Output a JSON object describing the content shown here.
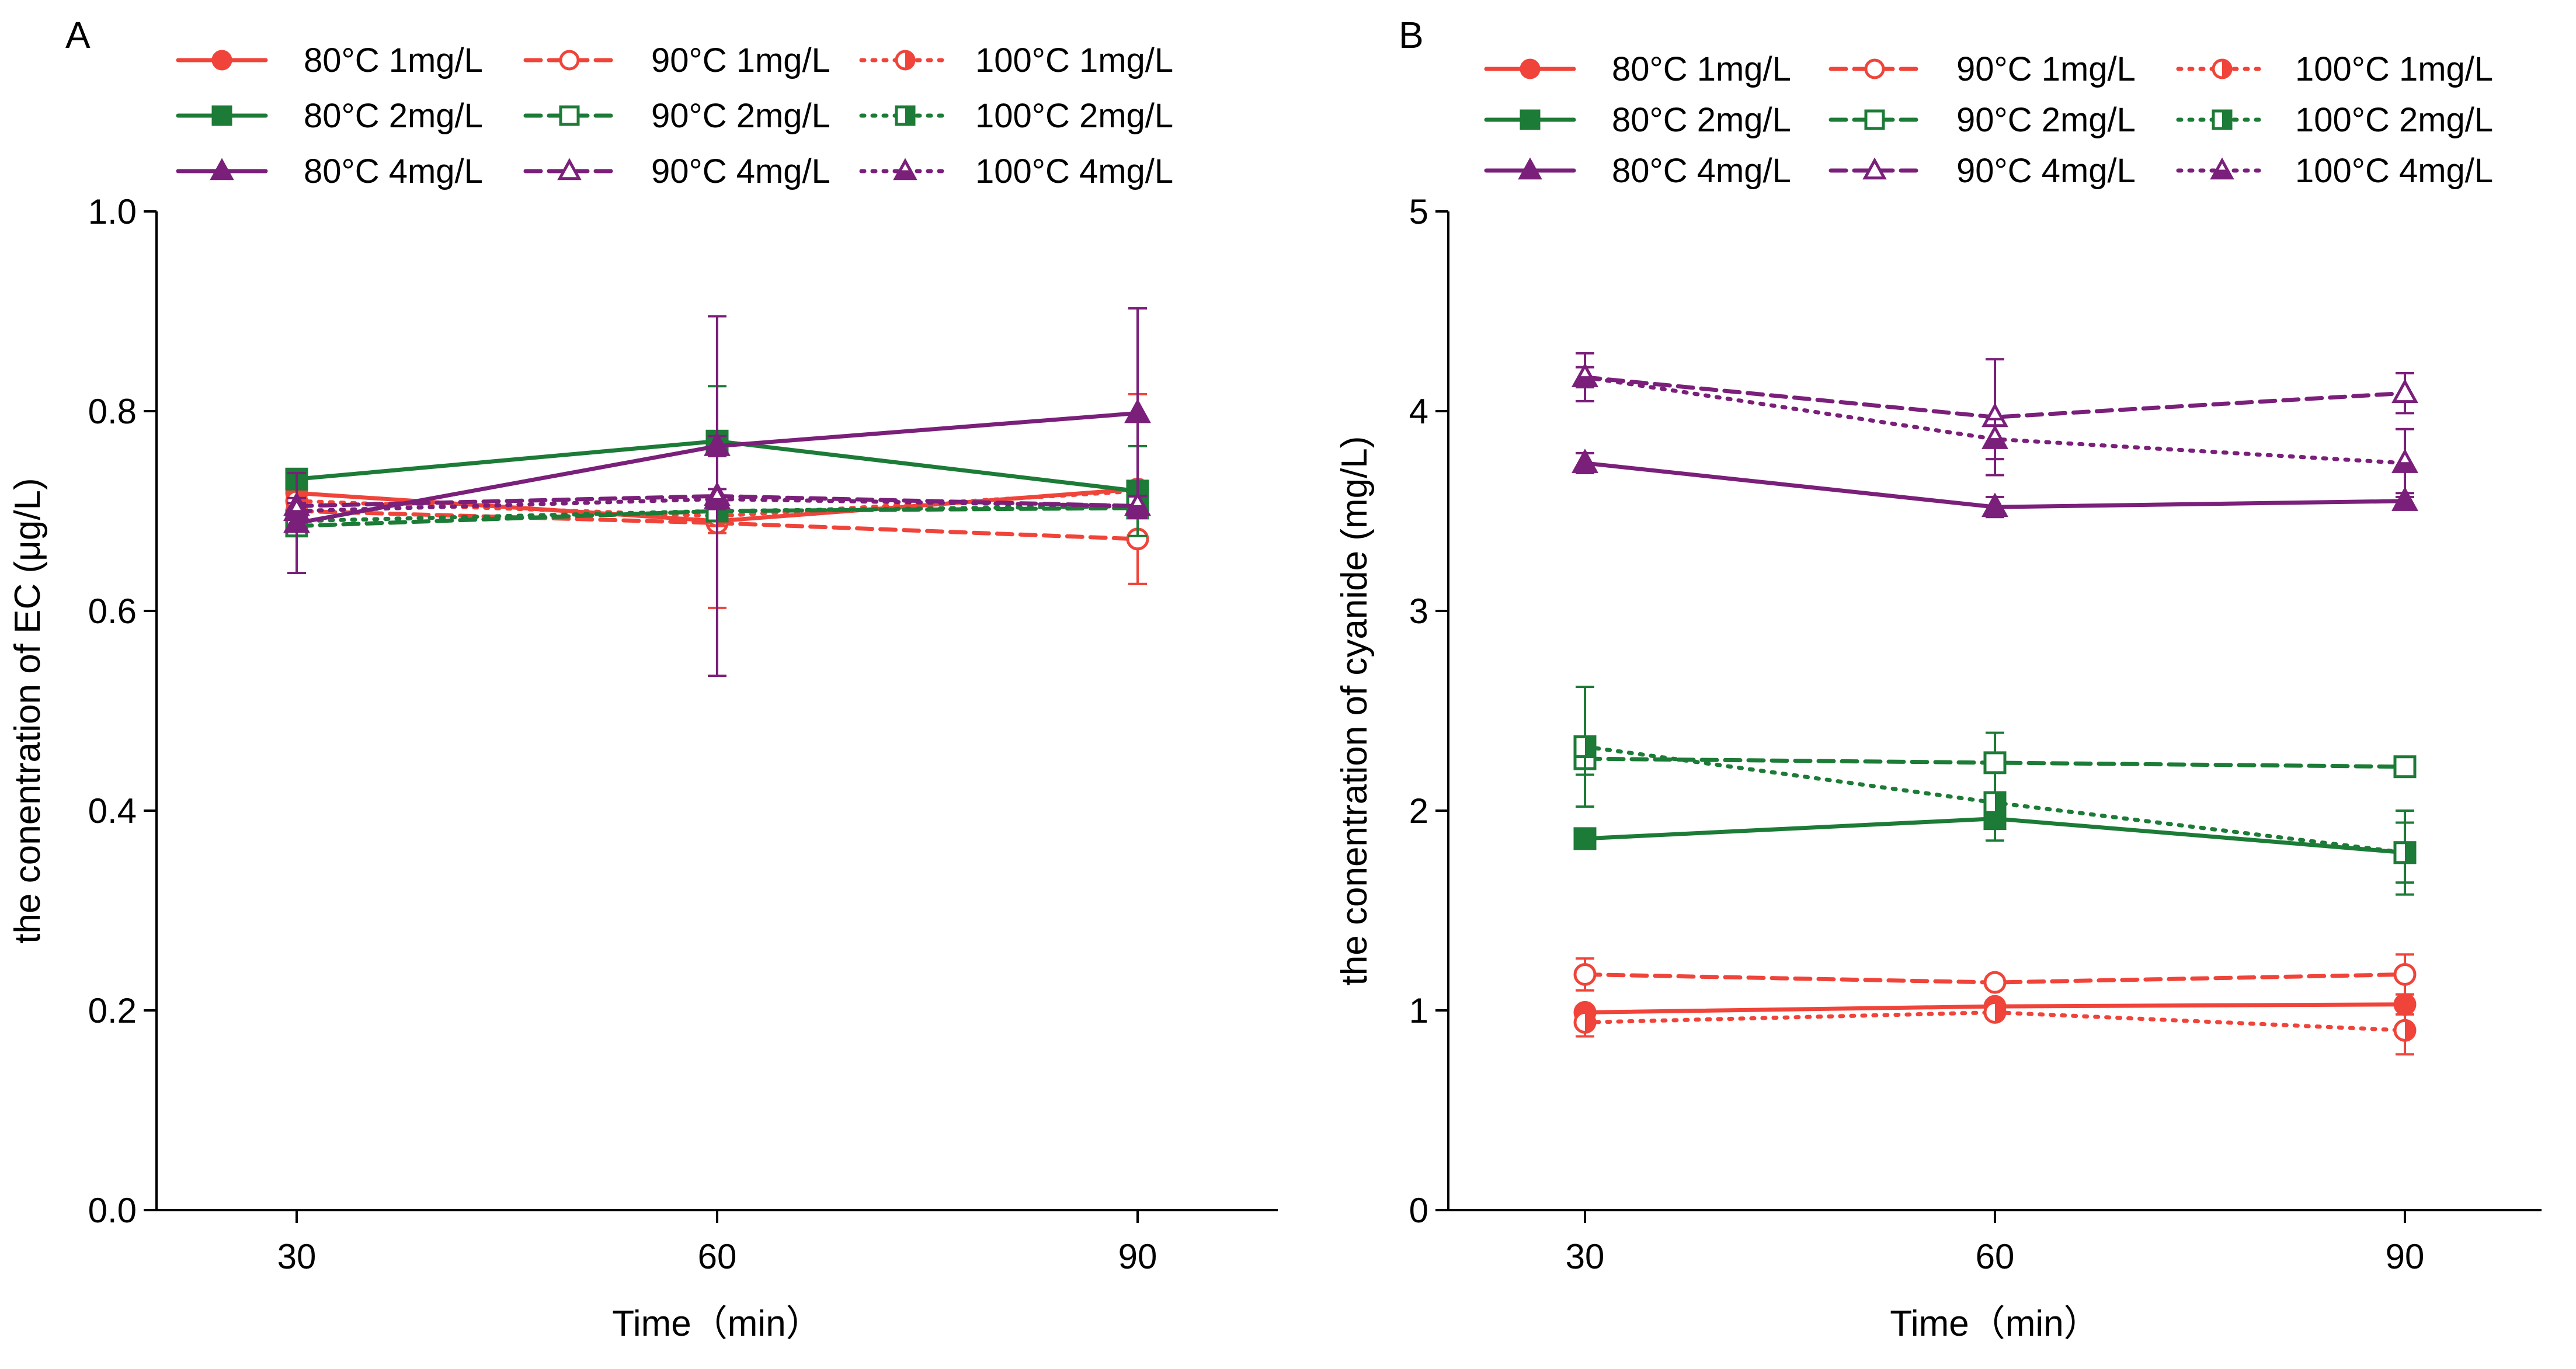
{
  "figure": {
    "panels": [
      "A",
      "B"
    ]
  },
  "chart_data": [
    {
      "panel": "A",
      "type": "line",
      "title": "",
      "xlabel": "Time（min）",
      "ylabel": "the conentration of EC (μg/L)",
      "x": [
        30,
        60,
        90
      ],
      "x_ticks": [
        "30",
        "60",
        "90"
      ],
      "y_ticks": [
        "0.0",
        "0.2",
        "0.4",
        "0.6",
        "0.8",
        "1.0"
      ],
      "xlim": [
        20,
        100
      ],
      "ylim": [
        0,
        1.0
      ],
      "legend_position": "top",
      "series": [
        {
          "name": "80°C 1mg/L",
          "color": "#F0443A",
          "dash": "solid",
          "marker": "circle",
          "fill": "full",
          "values": [
            0.718,
            0.69,
            0.722
          ],
          "errors": [
            0.01,
            0.012,
            0.095
          ]
        },
        {
          "name": "90°C 1mg/L",
          "color": "#F0443A",
          "dash": "dashed",
          "marker": "circle",
          "fill": "open",
          "values": [
            0.7,
            0.688,
            0.672
          ],
          "errors": [
            0.01,
            0.085,
            0.045
          ]
        },
        {
          "name": "100°C 1mg/L",
          "color": "#F0443A",
          "dash": "dotted",
          "marker": "circle",
          "fill": "half",
          "values": [
            0.71,
            0.695,
            0.72
          ],
          "errors": [
            0.01,
            0.01,
            0.01
          ]
        },
        {
          "name": "80°C 2mg/L",
          "color": "#1C7B36",
          "dash": "solid",
          "marker": "square",
          "fill": "full",
          "values": [
            0.732,
            0.77,
            0.72
          ],
          "errors": [
            0.008,
            0.055,
            0.045
          ]
        },
        {
          "name": "90°C 2mg/L",
          "color": "#1C7B36",
          "dash": "dashed",
          "marker": "square",
          "fill": "open",
          "values": [
            0.685,
            0.7,
            0.703
          ],
          "errors": [
            0.008,
            0.01,
            0.01
          ]
        },
        {
          "name": "100°C 2mg/L",
          "color": "#1C7B36",
          "dash": "dotted",
          "marker": "square",
          "fill": "half",
          "values": [
            0.69,
            0.7,
            0.705
          ],
          "errors": [
            0.008,
            0.01,
            0.01
          ]
        },
        {
          "name": "80°C 4mg/L",
          "color": "#7A1F7A",
          "dash": "solid",
          "marker": "triangle",
          "fill": "full",
          "values": [
            0.688,
            0.765,
            0.798
          ],
          "errors": [
            0.05,
            0.01,
            0.105
          ]
        },
        {
          "name": "90°C 4mg/L",
          "color": "#7A1F7A",
          "dash": "dashed",
          "marker": "triangle",
          "fill": "open",
          "values": [
            0.705,
            0.715,
            0.705
          ],
          "errors": [
            0.008,
            0.18,
            0.01
          ]
        },
        {
          "name": "100°C 4mg/L",
          "color": "#7A1F7A",
          "dash": "dotted",
          "marker": "triangle",
          "fill": "half",
          "values": [
            0.7,
            0.712,
            0.705
          ],
          "errors": [
            0.008,
            0.01,
            0.01
          ]
        }
      ]
    },
    {
      "panel": "B",
      "type": "line",
      "title": "",
      "xlabel": "Time（min）",
      "ylabel": "the conentration of cyanide (mg/L)",
      "x": [
        30,
        60,
        90
      ],
      "x_ticks": [
        "30",
        "60",
        "90"
      ],
      "y_ticks": [
        "0",
        "1",
        "2",
        "3",
        "4",
        "5"
      ],
      "xlim": [
        20,
        100
      ],
      "ylim": [
        0,
        5
      ],
      "legend_position": "top",
      "series": [
        {
          "name": "80°C 1mg/L",
          "color": "#F0443A",
          "dash": "solid",
          "marker": "circle",
          "fill": "full",
          "values": [
            0.99,
            1.02,
            1.03
          ],
          "errors": [
            0.03,
            0.03,
            0.05
          ]
        },
        {
          "name": "90°C 1mg/L",
          "color": "#F0443A",
          "dash": "dashed",
          "marker": "circle",
          "fill": "open",
          "values": [
            1.18,
            1.14,
            1.18
          ],
          "errors": [
            0.08,
            0.03,
            0.1
          ]
        },
        {
          "name": "100°C 1mg/L",
          "color": "#F0443A",
          "dash": "dotted",
          "marker": "circle",
          "fill": "half",
          "values": [
            0.94,
            0.99,
            0.9
          ],
          "errors": [
            0.07,
            0.03,
            0.12
          ]
        },
        {
          "name": "80°C 2mg/L",
          "color": "#1C7B36",
          "dash": "solid",
          "marker": "square",
          "fill": "full",
          "values": [
            1.86,
            1.96,
            1.79
          ],
          "errors": [
            0.03,
            0.11,
            0.21
          ]
        },
        {
          "name": "90°C 2mg/L",
          "color": "#1C7B36",
          "dash": "dashed",
          "marker": "square",
          "fill": "open",
          "values": [
            2.26,
            2.24,
            2.22
          ],
          "errors": [
            0.08,
            0.15,
            0.03
          ]
        },
        {
          "name": "100°C 2mg/L",
          "color": "#1C7B36",
          "dash": "dotted",
          "marker": "square",
          "fill": "half",
          "values": [
            2.32,
            2.04,
            1.79
          ],
          "errors": [
            0.3,
            0.05,
            0.15
          ]
        },
        {
          "name": "80°C 4mg/L",
          "color": "#7A1F7A",
          "dash": "solid",
          "marker": "triangle",
          "fill": "full",
          "values": [
            3.74,
            3.52,
            3.55
          ],
          "errors": [
            0.05,
            0.05,
            0.04
          ]
        },
        {
          "name": "90°C 4mg/L",
          "color": "#7A1F7A",
          "dash": "dashed",
          "marker": "triangle",
          "fill": "open",
          "values": [
            4.17,
            3.97,
            4.09
          ],
          "errors": [
            0.12,
            0.29,
            0.1
          ]
        },
        {
          "name": "100°C 4mg/L",
          "color": "#7A1F7A",
          "dash": "dotted",
          "marker": "triangle",
          "fill": "half",
          "values": [
            4.17,
            3.86,
            3.74
          ],
          "errors": [
            0.05,
            0.1,
            0.17
          ]
        }
      ]
    }
  ]
}
